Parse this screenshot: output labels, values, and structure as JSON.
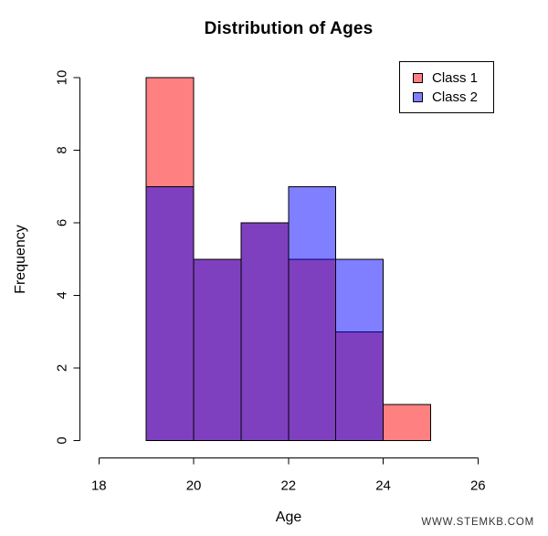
{
  "chart": {
    "title": "Distribution of Ages",
    "xlabel": "Age",
    "ylabel": "Frequency"
  },
  "legend": {
    "items": [
      {
        "label": "Class 1",
        "color": "#FF8080"
      },
      {
        "label": "Class 2",
        "color": "#8080FF"
      }
    ]
  },
  "watermark": "WWW.STEMKB.COM",
  "chart_data": {
    "type": "bar",
    "variant": "overlaid-histogram",
    "title": "Distribution of Ages",
    "xlabel": "Age",
    "ylabel": "Frequency",
    "bin_edges": [
      19,
      20,
      21,
      22,
      23,
      24,
      25
    ],
    "series": [
      {
        "name": "Class 1",
        "values": [
          10,
          5,
          6,
          5,
          3,
          1
        ],
        "fill_solid": "#FF8080",
        "fill_rgba": "rgba(255,0,0,0.5)"
      },
      {
        "name": "Class 2",
        "values": [
          7,
          5,
          6,
          7,
          5,
          0
        ],
        "fill_solid": "#8080FF",
        "fill_rgba": "rgba(0,0,255,0.5)"
      }
    ],
    "overlap_color": "#8040C0",
    "bar_border_color": "#000000",
    "axis_color": "#000000",
    "xlim": [
      18,
      26
    ],
    "ylim": [
      0,
      10
    ],
    "x_ticks": [
      18,
      20,
      22,
      24,
      26
    ],
    "y_ticks": [
      0,
      2,
      4,
      6,
      8,
      10
    ],
    "grid": false,
    "legend_position": "top-right"
  }
}
